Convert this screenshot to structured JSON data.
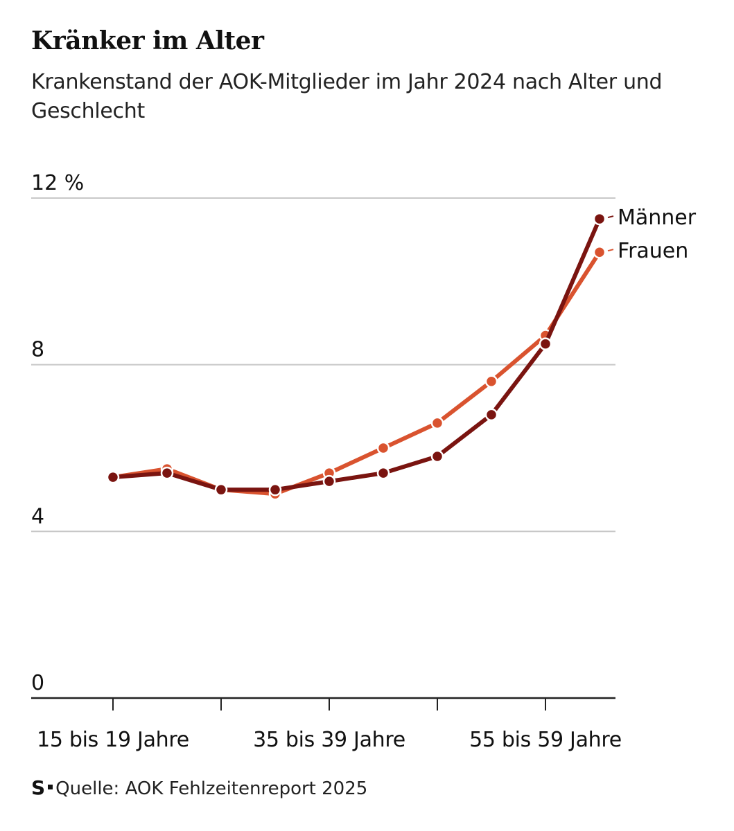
{
  "title": "Kränker im Alter",
  "subtitle": "Krankenstand der AOK-Mitglieder im Jahr 2024 nach Alter und Geschlecht",
  "source": {
    "logo": "S",
    "text": "Quelle: AOK Fehlzeitenreport 2025"
  },
  "colors": {
    "maenner": "#7a1410",
    "frauen": "#d9532f",
    "grid": "#c8c8c8",
    "axis": "#222222"
  },
  "chart_data": {
    "type": "line",
    "title": "Kränker im Alter",
    "subtitle": "Krankenstand der AOK-Mitglieder im Jahr 2024 nach Alter und Geschlecht",
    "ylim": [
      0,
      12
    ],
    "yticks": [
      0,
      4,
      8,
      12
    ],
    "ytick_labels": [
      "0",
      "4",
      "8",
      "12 %"
    ],
    "grid": true,
    "legend": "inline-right",
    "x": [
      0,
      1,
      2,
      3,
      4,
      5,
      6,
      7,
      8,
      9
    ],
    "xtick_labels": [
      {
        "at": 0,
        "label": "15 bis 19 Jahre"
      },
      {
        "at": 4,
        "label": "35 bis 39 Jahre"
      },
      {
        "at": 8,
        "label": "55 bis 59 Jahre"
      }
    ],
    "xticks_minor": [
      0,
      2,
      4,
      6,
      8
    ],
    "series": [
      {
        "name": "Frauen",
        "color": "#d9532f",
        "values": [
          5.3,
          5.5,
          5.0,
          4.9,
          5.4,
          6.0,
          6.6,
          7.6,
          8.7,
          10.7
        ]
      },
      {
        "name": "Männer",
        "color": "#7a1410",
        "values": [
          5.3,
          5.4,
          5.0,
          5.0,
          5.2,
          5.4,
          5.8,
          6.8,
          8.5,
          11.5
        ]
      }
    ]
  }
}
